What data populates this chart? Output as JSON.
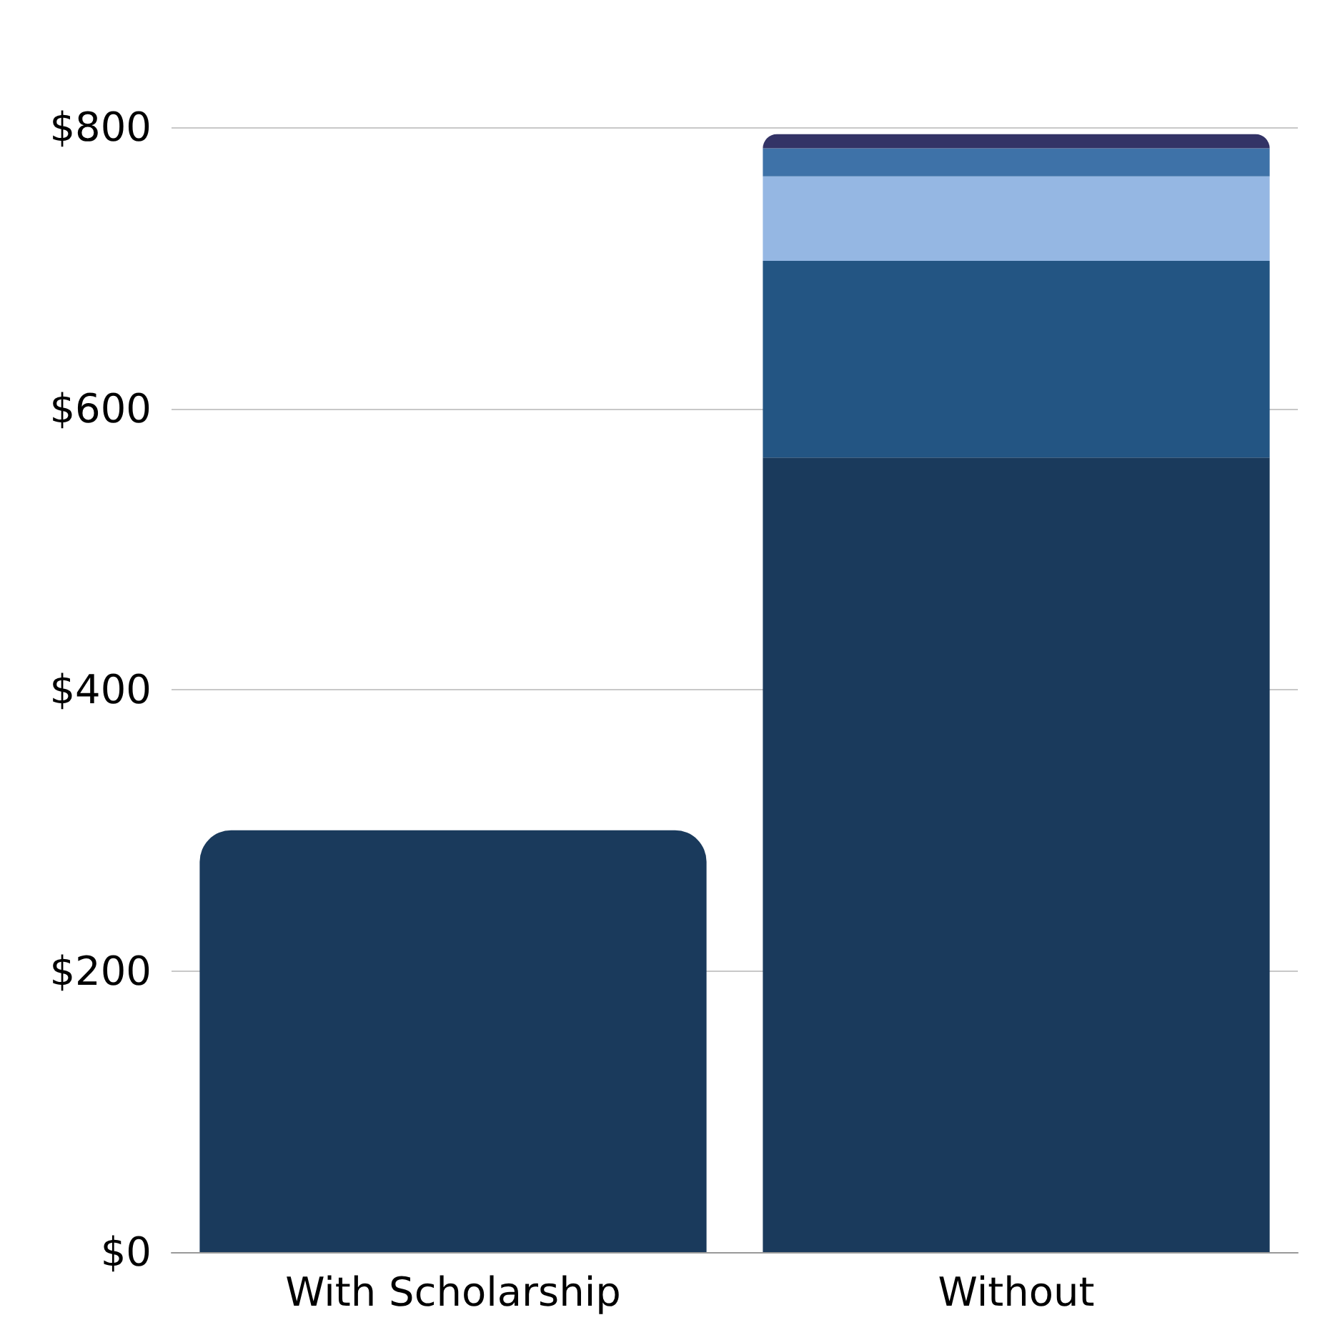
{
  "chart_data": {
    "type": "bar",
    "stacked": true,
    "categories": [
      "With Scholarship",
      "Without"
    ],
    "series": [
      {
        "color": "#1a3a5c",
        "values": [
          300,
          565
        ]
      },
      {
        "color": "#235583",
        "values": [
          null,
          140
        ]
      },
      {
        "color": "#95b7e3",
        "values": [
          null,
          60
        ]
      },
      {
        "color": "#3e72a8",
        "values": [
          null,
          20
        ]
      },
      {
        "color": "#333366",
        "values": [
          null,
          10
        ]
      }
    ],
    "ylim": [
      0,
      800
    ],
    "yticks": [
      {
        "value": 0,
        "label": "$0"
      },
      {
        "value": 200,
        "label": "$200"
      },
      {
        "value": 400,
        "label": "$400"
      },
      {
        "value": 600,
        "label": "$600"
      },
      {
        "value": 800,
        "label": "$800"
      }
    ],
    "grid": "y"
  }
}
